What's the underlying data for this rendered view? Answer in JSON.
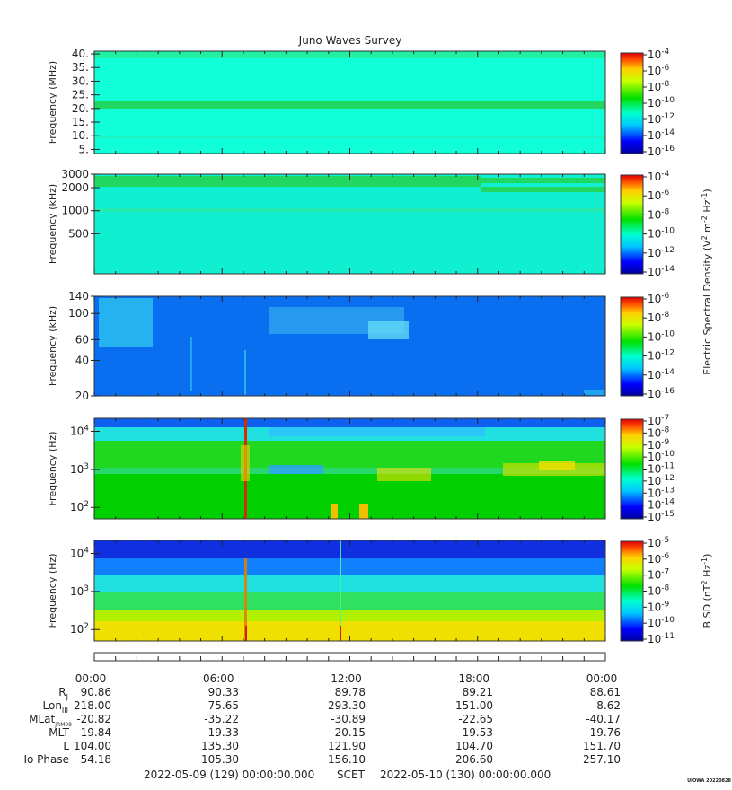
{
  "title": "Juno Waves Survey",
  "panels": [
    {
      "ylabel": "Frequency (MHz)",
      "scale": "linear",
      "yrange": [
        3.5,
        41
      ],
      "yticks": [
        {
          "label": "40.",
          "value": 40
        },
        {
          "label": "35.",
          "value": 35
        },
        {
          "label": "30.",
          "value": 30
        },
        {
          "label": "25.",
          "value": 25
        },
        {
          "label": "20.",
          "value": 20
        },
        {
          "label": "15.",
          "value": 15
        },
        {
          "label": "10.",
          "value": 10
        },
        {
          "label": "5.",
          "value": 5
        }
      ],
      "colorbar_labels": [
        {
          "base": "10",
          "exp": "-4"
        },
        {
          "base": "10",
          "exp": "-6"
        },
        {
          "base": "10",
          "exp": "-8"
        },
        {
          "base": "10",
          "exp": "-10"
        },
        {
          "base": "10",
          "exp": "-12"
        },
        {
          "base": "10",
          "exp": "-14"
        },
        {
          "base": "10",
          "exp": "-16"
        }
      ]
    },
    {
      "ylabel": "Frequency (kHz)",
      "scale": "log",
      "yrange": [
        150,
        3000
      ],
      "yticks": [
        {
          "label": "3000",
          "value": 3000
        },
        {
          "label": "2000",
          "value": 2000
        },
        {
          "label": "1000",
          "value": 1000
        },
        {
          "label": "500",
          "value": 500
        }
      ],
      "colorbar_labels": [
        {
          "base": "10",
          "exp": "-4"
        },
        {
          "base": "10",
          "exp": "-6"
        },
        {
          "base": "10",
          "exp": "-8"
        },
        {
          "base": "10",
          "exp": "-10"
        },
        {
          "base": "10",
          "exp": "-12"
        },
        {
          "base": "10",
          "exp": "-14"
        }
      ]
    },
    {
      "ylabel": "Frequency (kHz)",
      "scale": "log",
      "yrange": [
        20,
        140
      ],
      "yticks": [
        {
          "label": "140",
          "value": 140
        },
        {
          "label": "100",
          "value": 100
        },
        {
          "label": "60",
          "value": 60
        },
        {
          "label": "40",
          "value": 40
        },
        {
          "label": "20",
          "value": 20
        }
      ],
      "colorbar_labels": [
        {
          "base": "10",
          "exp": "-6"
        },
        {
          "base": "10",
          "exp": "-8"
        },
        {
          "base": "10",
          "exp": "-10"
        },
        {
          "base": "10",
          "exp": "-12"
        },
        {
          "base": "10",
          "exp": "-14"
        },
        {
          "base": "10",
          "exp": "-16"
        }
      ]
    },
    {
      "ylabel": "Frequency (Hz)",
      "scale": "log",
      "yrange": [
        50,
        22000
      ],
      "yticks": [
        {
          "base": "10",
          "exp": "4",
          "value": 10000
        },
        {
          "base": "10",
          "exp": "3",
          "value": 1000
        },
        {
          "base": "10",
          "exp": "2",
          "value": 100
        }
      ],
      "colorbar_labels": [
        {
          "base": "10",
          "exp": "-7"
        },
        {
          "base": "10",
          "exp": "-8"
        },
        {
          "base": "10",
          "exp": "-9"
        },
        {
          "base": "10",
          "exp": "-10"
        },
        {
          "base": "10",
          "exp": "-11"
        },
        {
          "base": "10",
          "exp": "-12"
        },
        {
          "base": "10",
          "exp": "-13"
        },
        {
          "base": "10",
          "exp": "-14"
        },
        {
          "base": "10",
          "exp": "-15"
        }
      ]
    },
    {
      "ylabel": "Frequency (Hz)",
      "scale": "log",
      "yrange": [
        50,
        22000
      ],
      "yticks": [
        {
          "base": "10",
          "exp": "4",
          "value": 10000
        },
        {
          "base": "10",
          "exp": "3",
          "value": 1000
        },
        {
          "base": "10",
          "exp": "2",
          "value": 100
        }
      ],
      "colorbar_labels": [
        {
          "base": "10",
          "exp": "-5"
        },
        {
          "base": "10",
          "exp": "-6"
        },
        {
          "base": "10",
          "exp": "-7"
        },
        {
          "base": "10",
          "exp": "-8"
        },
        {
          "base": "10",
          "exp": "-9"
        },
        {
          "base": "10",
          "exp": "-10"
        },
        {
          "base": "10",
          "exp": "-11"
        }
      ]
    }
  ],
  "colorbar_titles": [
    {
      "prefix": "Electric Spectral Density (V",
      "sup1": "2",
      "mid1": " m",
      "sup2": "-2",
      "mid2": " Hz",
      "sup3": "-1",
      "suffix": ")"
    },
    {
      "prefix": "B SD (nT",
      "sup1": "2",
      "mid1": " Hz",
      "sup2": "-1",
      "mid2": "",
      "sup3": "",
      "suffix": ")"
    }
  ],
  "time_axis": [
    "00:00",
    "06:00",
    "12:00",
    "18:00",
    "00:00"
  ],
  "ephemeris": {
    "rows": [
      {
        "label": "R",
        "sub": "J",
        "values": [
          "90.86",
          "90.33",
          "89.78",
          "89.21",
          "88.61"
        ]
      },
      {
        "label": "Lon",
        "sub": "III",
        "values": [
          "218.00",
          "75.65",
          "293.30",
          "151.00",
          "8.62"
        ]
      },
      {
        "label": "MLat",
        "sub": "JRM09",
        "values": [
          "-20.82",
          "-35.22",
          "-30.89",
          "-22.65",
          "-40.17"
        ]
      },
      {
        "label": "MLT",
        "sub": "",
        "values": [
          "19.84",
          "19.33",
          "20.15",
          "19.53",
          "19.76"
        ]
      },
      {
        "label": "L",
        "sub": "",
        "values": [
          "104.00",
          "135.30",
          "121.90",
          "104.70",
          "151.70"
        ]
      },
      {
        "label": "Io Phase",
        "sub": "",
        "values": [
          "54.18",
          "105.30",
          "156.10",
          "206.60",
          "257.10"
        ]
      }
    ]
  },
  "footer": {
    "start": "2022-05-09 (129) 00:00:00.000",
    "scet": "SCET",
    "end": "2022-05-10 (130) 00:00:00.000",
    "credit": "UIOWA 20220828"
  },
  "chart_data": {
    "type": "heatmap",
    "title": "Juno Waves Survey",
    "x_range": [
      "2022-05-09T00:00",
      "2022-05-10T00:00"
    ],
    "x_ticks": [
      "00:00",
      "06:00",
      "12:00",
      "18:00",
      "00:00"
    ],
    "panels": [
      {
        "ylabel": "Frequency (MHz)",
        "y_scale": "linear",
        "ylim": [
          3.5,
          41
        ],
        "colorbar_range": [
          "1e-16",
          "1e-4"
        ],
        "features": "uniform ~1e-13 background with a stronger ~1e-11 band near 21 MHz"
      },
      {
        "ylabel": "Frequency (kHz)",
        "y_scale": "log",
        "ylim": [
          150,
          3000
        ],
        "colorbar_range": [
          "1e-14",
          "1e-4"
        ],
        "features": "~1e-12 background, enhanced band near 2500 kHz, splitting near 1700-2200 kHz after 18:00"
      },
      {
        "ylabel": "Frequency (kHz)",
        "y_scale": "log",
        "ylim": [
          20,
          140
        ],
        "colorbar_range": [
          "1e-16",
          "1e-6"
        ],
        "features": "~1e-14 background, bursts at 60-140 kHz around 00:00-03:00 and 10:00-14:00"
      },
      {
        "ylabel": "Frequency (Hz)",
        "y_scale": "log",
        "ylim": [
          50,
          22000
        ],
        "colorbar_range": [
          "1e-15",
          "1e-7"
        ],
        "features": "green ~1e-11 emission below ~5 kHz, intense spike near 07:00, orange emission 300-1000 Hz"
      },
      {
        "ylabel": "Frequency (Hz)",
        "y_scale": "log",
        "ylim": [
          50,
          22000
        ],
        "colorbar_range": [
          "1e-11",
          "1e-5"
        ],
        "features": "yellow ~1e-6 below 200 Hz, decreasing to ~1e-10 above 5 kHz; spikes near 07:00 and 11:30"
      }
    ]
  }
}
